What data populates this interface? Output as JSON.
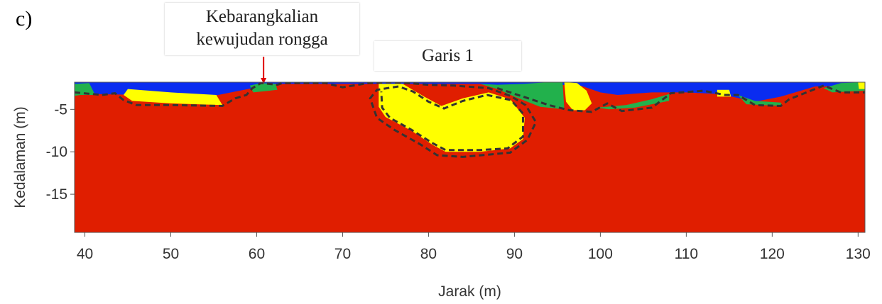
{
  "panel_label": "c)",
  "annotations": {
    "void_line1": "Kebarangkalian",
    "void_line2": "kewujudan rongga",
    "line_title": "Garis 1"
  },
  "chart_data": {
    "type": "heatmap",
    "title": "Garis 1",
    "xlabel": "Jarak (m)",
    "ylabel": "Kedalaman (m)",
    "xlim": [
      38.8,
      130.8
    ],
    "ylim": [
      -19.5,
      -1.8
    ],
    "xticks": [
      40,
      50,
      60,
      70,
      80,
      90,
      100,
      110,
      120,
      130
    ],
    "yticks": [
      -5,
      -10,
      -15
    ],
    "colors": {
      "background": "#e01e00",
      "yellow": "#ffff00",
      "green": "#22b14c",
      "blue": "#0a2cf0",
      "dashed_outline": "#333333",
      "arrow": "#e00000"
    },
    "zones": [
      {
        "color": "blue",
        "points": [
          [
            38.8,
            -1.8
          ],
          [
            130.8,
            -1.8
          ],
          [
            130.8,
            -2.2
          ],
          [
            125,
            -2.3
          ],
          [
            121,
            -3.5
          ],
          [
            118,
            -4.1
          ],
          [
            114,
            -3.2
          ],
          [
            110,
            -3.0
          ],
          [
            106,
            -3.0
          ],
          [
            102,
            -3.3
          ],
          [
            100,
            -3.0
          ],
          [
            98,
            -2.3
          ],
          [
            97,
            -2.0
          ],
          [
            95,
            -2.2
          ],
          [
            92,
            -2.9
          ],
          [
            86,
            -2.0
          ],
          [
            70,
            -2.0
          ],
          [
            62,
            -2.0
          ],
          [
            58,
            -2.8
          ],
          [
            55,
            -3.4
          ],
          [
            47,
            -3.3
          ],
          [
            41,
            -3.2
          ],
          [
            38.8,
            -2.8
          ]
        ]
      },
      {
        "color": "green",
        "points": [
          [
            38.8,
            -2.0
          ],
          [
            40.5,
            -1.9
          ],
          [
            41.2,
            -3.3
          ],
          [
            39.5,
            -3.3
          ],
          [
            38.8,
            -3.4
          ]
        ]
      },
      {
        "color": "green",
        "points": [
          [
            59.2,
            -2.2
          ],
          [
            60.5,
            -1.9
          ],
          [
            62.2,
            -2.0
          ],
          [
            62.4,
            -2.7
          ],
          [
            59.6,
            -3.0
          ]
        ]
      },
      {
        "color": "green",
        "points": [
          [
            86,
            -2.0
          ],
          [
            88,
            -2.1
          ],
          [
            91,
            -2.0
          ],
          [
            94,
            -1.8
          ],
          [
            95.6,
            -1.8
          ],
          [
            95.8,
            -5.0
          ],
          [
            93,
            -4.7
          ],
          [
            90,
            -3.5
          ],
          [
            88,
            -2.6
          ]
        ]
      },
      {
        "color": "green",
        "points": [
          [
            99.6,
            -4.8
          ],
          [
            103,
            -4.5
          ],
          [
            106,
            -3.8
          ],
          [
            108,
            -3.2
          ],
          [
            108,
            -4.0
          ],
          [
            104,
            -4.8
          ],
          [
            101,
            -5.0
          ]
        ]
      },
      {
        "color": "green",
        "points": [
          [
            116,
            -3.3
          ],
          [
            118,
            -4.0
          ],
          [
            121,
            -4.2
          ],
          [
            121.2,
            -4.6
          ],
          [
            117,
            -4.4
          ]
        ]
      },
      {
        "color": "green",
        "points": [
          [
            126,
            -2.5
          ],
          [
            128,
            -1.9
          ],
          [
            130.8,
            -1.8
          ],
          [
            130.8,
            -2.8
          ],
          [
            127,
            -3.0
          ]
        ]
      },
      {
        "color": "yellow",
        "points": [
          [
            45,
            -2.6
          ],
          [
            50,
            -3.0
          ],
          [
            55.3,
            -3.3
          ],
          [
            56,
            -4.5
          ],
          [
            50,
            -4.3
          ],
          [
            45.5,
            -4.0
          ],
          [
            44.5,
            -3.3
          ]
        ]
      },
      {
        "color": "yellow",
        "points": [
          [
            74.2,
            -2.0
          ],
          [
            77,
            -2.0
          ],
          [
            79.5,
            -3.5
          ],
          [
            81.5,
            -4.6
          ],
          [
            84,
            -3.7
          ],
          [
            87,
            -3.0
          ],
          [
            89.5,
            -3.8
          ],
          [
            91.2,
            -6.0
          ],
          [
            91,
            -8.5
          ],
          [
            89.5,
            -9.6
          ],
          [
            86,
            -10.0
          ],
          [
            82,
            -10.0
          ],
          [
            80.5,
            -9.2
          ],
          [
            78,
            -7.5
          ],
          [
            75,
            -5.9
          ],
          [
            74.2,
            -4.7
          ]
        ]
      },
      {
        "color": "yellow",
        "points": [
          [
            95.8,
            -1.8
          ],
          [
            97.3,
            -1.9
          ],
          [
            98.4,
            -2.8
          ],
          [
            99,
            -4.3
          ],
          [
            98.2,
            -5.1
          ],
          [
            96.8,
            -5.1
          ],
          [
            96,
            -4.1
          ]
        ]
      },
      {
        "color": "yellow",
        "points": [
          [
            113.6,
            -2.7
          ],
          [
            115,
            -2.7
          ],
          [
            115.2,
            -3.5
          ],
          [
            113.6,
            -3.5
          ]
        ]
      },
      {
        "color": "yellow",
        "points": [
          [
            130.0,
            -1.8
          ],
          [
            130.8,
            -1.8
          ],
          [
            130.8,
            -2.6
          ],
          [
            130.1,
            -2.6
          ]
        ]
      }
    ],
    "dashed_outlines": [
      [
        [
          38.8,
          -3.0
        ],
        [
          42,
          -3.3
        ],
        [
          43.5,
          -3.1
        ],
        [
          44.5,
          -3.9
        ],
        [
          46,
          -4.5
        ],
        [
          50,
          -4.5
        ],
        [
          56,
          -4.6
        ],
        [
          57.5,
          -3.7
        ],
        [
          58.8,
          -3.3
        ],
        [
          59.5,
          -2.5
        ],
        [
          60.5,
          -1.9
        ],
        [
          62.4,
          -2.1
        ],
        [
          63,
          -1.9
        ],
        [
          68,
          -1.9
        ],
        [
          70,
          -2.4
        ],
        [
          73,
          -1.9
        ],
        [
          75.5,
          -1.8
        ],
        [
          77.5,
          -1.9
        ],
        [
          80,
          -2.1
        ],
        [
          83,
          -2.2
        ],
        [
          87,
          -2.5
        ],
        [
          89.5,
          -3.4
        ],
        [
          91.3,
          -4.5
        ],
        [
          92.5,
          -6.5
        ],
        [
          91.5,
          -8.6
        ],
        [
          89.5,
          -10.1
        ],
        [
          84,
          -10.6
        ],
        [
          81,
          -10.4
        ],
        [
          79,
          -9.1
        ],
        [
          76,
          -7.4
        ],
        [
          74,
          -6.0
        ],
        [
          73.2,
          -3.7
        ],
        [
          74,
          -2.7
        ],
        [
          76.5,
          -2.3
        ],
        [
          78.2,
          -2.9
        ],
        [
          80,
          -4.1
        ],
        [
          81.8,
          -4.9
        ],
        [
          84,
          -4.0
        ],
        [
          86.8,
          -3.3
        ],
        [
          89.6,
          -3.9
        ],
        [
          91,
          -5.5
        ],
        [
          91,
          -8.2
        ],
        [
          89.2,
          -9.6
        ],
        [
          86,
          -9.8
        ],
        [
          82,
          -9.8
        ],
        [
          80.5,
          -9.0
        ],
        [
          78,
          -7.4
        ],
        [
          75.5,
          -6.0
        ],
        [
          74.6,
          -4.8
        ],
        [
          74.5,
          -2.9
        ]
      ],
      [
        [
          88,
          -2.5
        ],
        [
          94,
          -4.5
        ],
        [
          96.4,
          -5.1
        ],
        [
          99,
          -5.3
        ],
        [
          100.8,
          -4.3
        ],
        [
          102.5,
          -5.2
        ],
        [
          106,
          -4.8
        ],
        [
          108.2,
          -3.1
        ],
        [
          112,
          -2.8
        ],
        [
          114.5,
          -3.3
        ],
        [
          116,
          -3.3
        ],
        [
          118,
          -4.5
        ],
        [
          121,
          -4.6
        ],
        [
          122,
          -3.8
        ],
        [
          126,
          -2.2
        ],
        [
          128,
          -3.0
        ],
        [
          130.8,
          -3.0
        ]
      ]
    ]
  }
}
